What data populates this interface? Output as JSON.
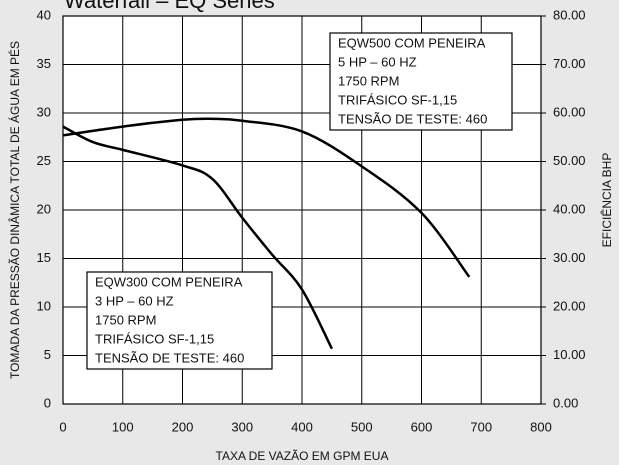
{
  "chart_data": {
    "type": "line",
    "title": "Waterfall – EQ Series",
    "xlabel": "TAXA DE VAZÃO EM GPM EUA",
    "ylabel": "TOMADA DA PRESSÃO DINÂMICA TOTAL DE ÁGUA EM PÉS",
    "y2label": "EFICIÊNCIA BHP",
    "xlim": [
      0,
      800
    ],
    "xticks": [
      0,
      100,
      200,
      300,
      400,
      500,
      600,
      700,
      800
    ],
    "ylim": [
      0,
      40
    ],
    "yticks": [
      0,
      5,
      10,
      15,
      20,
      25,
      30,
      35,
      40
    ],
    "y2lim": [
      0,
      80
    ],
    "y2ticks": [
      {
        "value": 0,
        "label": "0.00"
      },
      {
        "value": 10,
        "label": "10.00"
      },
      {
        "value": 20,
        "label": "20.00"
      },
      {
        "value": 30,
        "label": "30.00"
      },
      {
        "value": 40,
        "label": "40.00"
      },
      {
        "value": 50,
        "label": "50.00"
      },
      {
        "value": 60,
        "label": "60.00"
      },
      {
        "value": 70,
        "label": "70.00"
      },
      {
        "value": 80,
        "label": "80.00"
      }
    ],
    "grid": true,
    "series": [
      {
        "color": "#000000",
        "x": [
          0,
          100,
          200,
          250,
          300,
          400,
          500,
          600,
          680
        ],
        "values": [
          27.7,
          28.6,
          29.3,
          29.4,
          29.2,
          28.1,
          24.5,
          19.7,
          13.1
        ]
      },
      {
        "color": "#000000",
        "x": [
          0,
          50,
          100,
          200,
          250,
          300,
          350,
          400,
          450
        ],
        "values": [
          28.6,
          27.0,
          26.2,
          24.6,
          23.2,
          19.2,
          15.4,
          11.8,
          5.7
        ]
      }
    ],
    "annotations": [
      {
        "lines": [
          "EQW500 COM PENEIRA",
          "5 HP – 60 HZ",
          "1750 RPM",
          "TRIFÁSICO SF-1,15",
          "TENSÃO DE TESTE: 460"
        ]
      },
      {
        "lines": [
          "EQW300 COM PENEIRA",
          "3 HP – 60 HZ",
          "1750 RPM",
          "TRIFÁSICO SF-1,15",
          "TENSÃO DE TESTE: 460"
        ]
      }
    ]
  }
}
